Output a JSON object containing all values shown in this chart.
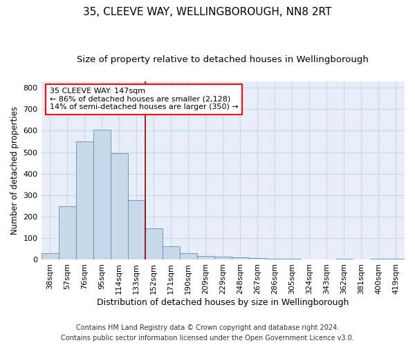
{
  "title": "35, CLEEVE WAY, WELLINGBOROUGH, NN8 2RT",
  "subtitle": "Size of property relative to detached houses in Wellingborough",
  "xlabel": "Distribution of detached houses by size in Wellingborough",
  "ylabel": "Number of detached properties",
  "footnote1": "Contains HM Land Registry data © Crown copyright and database right 2024.",
  "footnote2": "Contains public sector information licensed under the Open Government Licence v3.0.",
  "categories": [
    "38sqm",
    "57sqm",
    "76sqm",
    "95sqm",
    "114sqm",
    "133sqm",
    "152sqm",
    "171sqm",
    "190sqm",
    "209sqm",
    "229sqm",
    "248sqm",
    "267sqm",
    "286sqm",
    "305sqm",
    "324sqm",
    "343sqm",
    "362sqm",
    "381sqm",
    "400sqm",
    "419sqm"
  ],
  "values": [
    30,
    247,
    549,
    605,
    494,
    278,
    147,
    62,
    30,
    18,
    13,
    12,
    7,
    4,
    5,
    2,
    2,
    6,
    2,
    5,
    4
  ],
  "bar_color": "#c9d9ec",
  "bar_edge_color": "#5b8db8",
  "vline_x_index": 5.5,
  "vline_color": "#8b0000",
  "annotation_line1": "35 CLEEVE WAY: 147sqm",
  "annotation_line2": "← 86% of detached houses are smaller (2,128)",
  "annotation_line3": "14% of semi-detached houses are larger (350) →",
  "annotation_box_color": "white",
  "annotation_box_edge_color": "red",
  "ylim": [
    0,
    830
  ],
  "yticks": [
    0,
    100,
    200,
    300,
    400,
    500,
    600,
    700,
    800
  ],
  "grid_color": "#c8d4e8",
  "background_color": "#e8eef8",
  "title_fontsize": 11,
  "subtitle_fontsize": 9.5,
  "ylabel_fontsize": 8.5,
  "xlabel_fontsize": 9,
  "tick_fontsize": 8,
  "footnote_fontsize": 7,
  "ann_fontsize": 8
}
